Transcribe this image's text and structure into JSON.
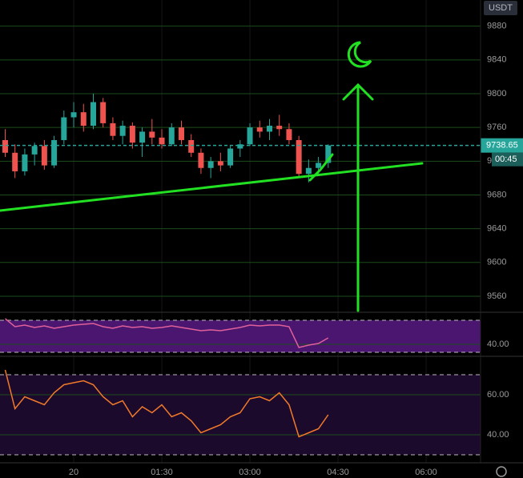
{
  "header": {
    "currency": "USDT"
  },
  "chart_data": [
    {
      "type": "candlestick",
      "x": [
        -70,
        -60,
        -50,
        -40,
        -30,
        -20,
        -10,
        0,
        10,
        20,
        30,
        40,
        50,
        60,
        70,
        80,
        90,
        100,
        110,
        120,
        130,
        140,
        150,
        160,
        170,
        180,
        190,
        200,
        210,
        220,
        230,
        240,
        250,
        260
      ],
      "open": [
        9745,
        9730,
        9708,
        9728,
        9738,
        9715,
        9745,
        9772,
        9778,
        9762,
        9790,
        9765,
        9750,
        9762,
        9742,
        9755,
        9748,
        9740,
        9760,
        9745,
        9730,
        9712,
        9720,
        9715,
        9735,
        9740,
        9760,
        9755,
        9762,
        9758,
        9745,
        9705,
        9712,
        9718
      ],
      "high": [
        9758,
        9740,
        9735,
        9742,
        9745,
        9750,
        9780,
        9790,
        9788,
        9800,
        9795,
        9772,
        9768,
        9766,
        9760,
        9770,
        9758,
        9765,
        9768,
        9752,
        9735,
        9725,
        9730,
        9738,
        9745,
        9765,
        9768,
        9770,
        9775,
        9765,
        9750,
        9722,
        9725,
        9740
      ],
      "low": [
        9725,
        9700,
        9703,
        9715,
        9710,
        9712,
        9740,
        9760,
        9755,
        9758,
        9760,
        9745,
        9740,
        9735,
        9725,
        9740,
        9735,
        9738,
        9740,
        9725,
        9705,
        9700,
        9708,
        9712,
        9725,
        9738,
        9748,
        9745,
        9750,
        9740,
        9700,
        9695,
        9705,
        9712
      ],
      "close": [
        9730,
        9708,
        9728,
        9738,
        9715,
        9745,
        9772,
        9778,
        9762,
        9790,
        9765,
        9750,
        9762,
        9742,
        9755,
        9748,
        9740,
        9760,
        9745,
        9730,
        9712,
        9720,
        9715,
        9735,
        9740,
        9760,
        9755,
        9762,
        9758,
        9745,
        9705,
        9712,
        9718,
        9738.65
      ],
      "up_color": "#26a69a",
      "down_color": "#ef5350",
      "xlim": [
        -75.3,
        415.6
      ],
      "xticks": [
        {
          "value": 0,
          "label": "20"
        },
        {
          "value": 90,
          "label": "01:30"
        },
        {
          "value": 180,
          "label": "03:00"
        },
        {
          "value": 270,
          "label": "04:30"
        },
        {
          "value": 360,
          "label": "06:00"
        }
      ],
      "ylim": [
        9541,
        9911
      ],
      "yticks": [
        9560,
        9600,
        9640,
        9680,
        9720,
        9760,
        9800,
        9840,
        9880
      ],
      "grid": true,
      "last_price": 9738.65,
      "countdown": "00:45"
    },
    {
      "type": "line",
      "x": [
        -70,
        -60,
        -50,
        -40,
        -30,
        -20,
        -10,
        0,
        10,
        20,
        30,
        40,
        50,
        60,
        70,
        80,
        90,
        100,
        110,
        120,
        130,
        140,
        150,
        160,
        170,
        180,
        190,
        200,
        210,
        220,
        230,
        240,
        250,
        260
      ],
      "series": [
        {
          "color": "#e0609a",
          "values": [
            72,
            62,
            64,
            61,
            63,
            60,
            62,
            64,
            65,
            66,
            62,
            60,
            63,
            61,
            62,
            60,
            61,
            63,
            61,
            59,
            57,
            58,
            57,
            59,
            61,
            64,
            63,
            64,
            64,
            62,
            36,
            39,
            41,
            48
          ]
        }
      ],
      "ylim": [
        25,
        80
      ],
      "yticks": [
        {
          "value": 40,
          "label": "40.00"
        }
      ],
      "band": [
        30,
        70
      ],
      "band_color": "#4a1670"
    },
    {
      "type": "line",
      "x": [
        -70,
        -60,
        -50,
        -40,
        -30,
        -20,
        -10,
        0,
        10,
        20,
        30,
        40,
        50,
        60,
        70,
        80,
        90,
        100,
        110,
        120,
        130,
        140,
        150,
        160,
        170,
        180,
        190,
        200,
        210,
        220,
        230,
        240,
        250,
        260
      ],
      "series": [
        {
          "color": "#f07a2a",
          "values": [
            72.4,
            53,
            59,
            57,
            55,
            61,
            65,
            66,
            67,
            65,
            59,
            55,
            57,
            49,
            54,
            51,
            55,
            49,
            51,
            47,
            41,
            43,
            45,
            49,
            51,
            58,
            59,
            57,
            61,
            55,
            39,
            41,
            43,
            50
          ]
        }
      ],
      "ylim": [
        26,
        79.2
      ],
      "yticks": [
        {
          "value": 40,
          "label": "40.00"
        },
        {
          "value": 60,
          "label": "60.00"
        }
      ],
      "band": [
        30,
        70
      ],
      "band_color": "#1c0a2c"
    }
  ]
}
